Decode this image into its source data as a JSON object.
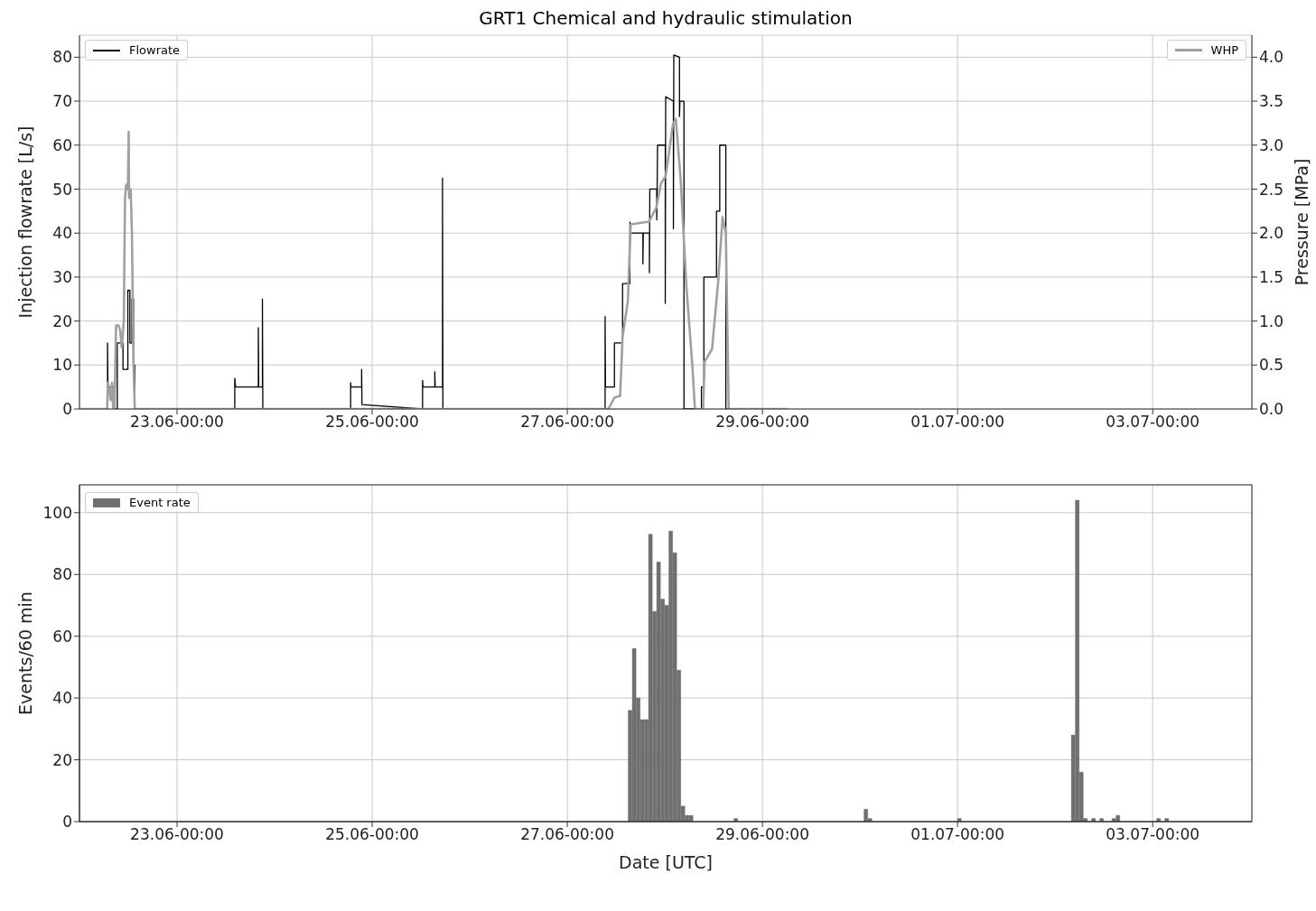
{
  "chart_data": [
    {
      "type": "line",
      "title": "GRT1 Chemical and hydraulic stimulation",
      "ylabel": "Injection flowrate [L/s]",
      "y2label": "Pressure [MPa]",
      "xlim": [
        "--06-22T00:00",
        "--07-04T00:24"
      ],
      "xticks": [
        {
          "value": "--06-23T00:00",
          "label": "23.06-00:00"
        },
        {
          "value": "--06-25T00:00",
          "label": "25.06-00:00"
        },
        {
          "value": "--06-27T00:00",
          "label": "27.06-00:00"
        },
        {
          "value": "--06-29T00:00",
          "label": "29.06-00:00"
        },
        {
          "value": "--07-01T00:00",
          "label": "01.07-00:00"
        },
        {
          "value": "--07-03T00:00",
          "label": "03.07-00:00"
        }
      ],
      "ylim": [
        0,
        85
      ],
      "yticks": [
        0,
        10,
        20,
        30,
        40,
        50,
        60,
        70,
        80
      ],
      "y2lim": [
        0,
        4.25
      ],
      "y2ticks": [
        {
          "value": 0,
          "label": "0.0"
        },
        {
          "value": 0.5,
          "label": "0.5"
        },
        {
          "value": 1,
          "label": "1.0"
        },
        {
          "value": 1.5,
          "label": "1.5"
        },
        {
          "value": 2,
          "label": "2.0"
        },
        {
          "value": 2.5,
          "label": "2.5"
        },
        {
          "value": 3,
          "label": "3.0"
        },
        {
          "value": 3.5,
          "label": "3.5"
        },
        {
          "value": 4,
          "label": "4.0"
        }
      ],
      "grid": true,
      "legend": "top left",
      "series": [
        {
          "name": "Flowrate",
          "type": "line",
          "color": "#000000",
          "x": [
            "--06-22T00:00",
            "--06-22T06:54",
            "--06-22T06:54",
            "--06-22T07:00",
            "--06-22T08:30",
            "--06-22T08:30",
            "--06-22T09:18",
            "--06-22T09:18",
            "--06-22T10:42",
            "--06-22T10:42",
            "--06-22T11:54",
            "--06-22T11:54",
            "--06-22T12:24",
            "--06-22T12:24",
            "--06-22T12:54",
            "--06-22T12:54",
            "--06-22T13:18",
            "--06-22T13:18",
            "--06-22T13:36",
            "--06-22T13:36",
            "--06-23T14:12",
            "--06-23T14:12",
            "--06-23T14:24",
            "--06-23T20:00",
            "--06-23T20:00",
            "--06-23T20:06",
            "--06-23T21:00",
            "--06-23T21:00",
            "--06-23T21:06",
            "--06-24T18:42",
            "--06-24T18:42",
            "--06-24T18:48",
            "--06-24T21:24",
            "--06-24T21:24",
            "--06-24T21:30",
            "--06-25T12:24",
            "--06-25T12:24",
            "--06-25T12:30",
            "--06-25T15:24",
            "--06-25T15:24",
            "--06-25T15:30",
            "--06-25T17:18",
            "--06-25T17:18",
            "--06-25T17:24",
            "--06-27T09:18",
            "--06-27T09:18",
            "--06-27T09:24",
            "--06-27T11:36",
            "--06-27T11:36",
            "--06-27T13:36",
            "--06-27T13:36",
            "--06-27T15:24",
            "--06-27T15:24",
            "--06-27T15:36",
            "--06-27T18:36",
            "--06-27T18:36",
            "--06-27T18:42",
            "--06-27T20:12",
            "--06-27T20:12",
            "--06-27T20:18",
            "--06-27T22:00",
            "--06-27T22:00",
            "--06-27T22:06",
            "--06-27T22:12",
            "--06-28T00:06",
            "--06-28T00:06",
            "--06-28T00:12",
            "--06-28T02:06",
            "--06-28T02:06",
            "--06-28T02:12",
            "--06-28T03:36",
            "--06-28T03:36",
            "--06-28T03:42",
            "--06-28T04:42",
            "--06-28T04:42",
            "--06-28T09:00",
            "--06-28T09:00",
            "--06-28T09:36",
            "--06-28T09:36",
            "--06-28T12:42",
            "--06-28T12:42",
            "--06-28T13:30",
            "--06-28T13:30",
            "--06-28T15:00",
            "--06-28T15:00",
            "--06-29T06:00"
          ],
          "values": [
            0,
            0,
            15,
            5,
            5,
            0,
            0,
            15,
            15,
            9,
            9,
            27,
            27,
            15,
            15,
            25,
            25,
            10,
            10,
            0,
            0,
            7,
            5,
            5,
            18.5,
            5,
            5,
            25,
            0,
            0,
            6,
            5,
            5,
            9,
            1,
            0,
            6.5,
            5,
            5,
            8.5,
            5,
            5,
            52.5,
            0,
            0,
            21,
            5,
            5,
            15,
            15,
            28.5,
            28.5,
            42.5,
            40,
            40,
            33,
            40,
            40,
            31,
            50,
            50,
            43,
            50,
            60,
            60,
            24,
            71,
            70,
            41,
            80.5,
            80,
            66.5,
            70,
            70,
            0,
            0,
            5,
            5,
            30,
            30,
            45,
            45,
            60,
            60,
            0,
            0
          ]
        },
        {
          "name": "WHP",
          "type": "line",
          "axis": "y2",
          "color": "#a0a0a0",
          "x": [
            "--06-22T00:00",
            "--06-22T06:48",
            "--06-22T07:00",
            "--06-22T07:24",
            "--06-22T07:42",
            "--06-22T08:00",
            "--06-22T08:18",
            "--06-22T08:36",
            "--06-22T09:00",
            "--06-22T09:36",
            "--06-22T10:00",
            "--06-22T10:24",
            "--06-22T10:54",
            "--06-22T11:12",
            "--06-22T11:30",
            "--06-22T11:54",
            "--06-22T12:06",
            "--06-22T12:12",
            "--06-22T12:36",
            "--06-22T12:54",
            "--06-22T13:18",
            "--06-22T13:36",
            "--06-27T10:06",
            "--06-27T11:36",
            "--06-27T13:00",
            "--06-27T13:36",
            "--06-27T14:54",
            "--06-27T15:36",
            "--06-27T20:06",
            "--06-27T21:54",
            "--06-27T23:00",
            "--06-28T00:12",
            "--06-28T02:00",
            "--06-28T02:42",
            "--06-28T03:54",
            "--06-28T05:18",
            "--06-28T06:48",
            "--06-28T07:24",
            "--06-28T09:24",
            "--06-28T09:48",
            "--06-28T11:36",
            "--06-28T13:06",
            "--06-28T14:12",
            "--06-28T15:00",
            "--06-28T15:42",
            "--06-29T06:00"
          ],
          "values": [
            0,
            0,
            0.3,
            0.2,
            0.1,
            0.3,
            0,
            0,
            0.95,
            0.95,
            0.9,
            0.7,
            1.0,
            2.4,
            2.55,
            2.5,
            3.15,
            2.4,
            2.5,
            2.0,
            0.5,
            0,
            0,
            0.13,
            0.15,
            0.82,
            1.23,
            2.1,
            2.13,
            2.29,
            2.56,
            2.65,
            3.24,
            3.3,
            2.6,
            1.39,
            0.47,
            0,
            0,
            0.54,
            0.68,
            1.44,
            2.18,
            2.0,
            0,
            0
          ]
        }
      ]
    },
    {
      "type": "histogram",
      "xlabel": "Date [UTC]",
      "ylabel": "Events/60 min",
      "xlim": [
        "--06-22T00:00",
        "--07-04T00:24"
      ],
      "xticks": [
        {
          "value": "--06-23T00:00",
          "label": "23.06-00:00"
        },
        {
          "value": "--06-25T00:00",
          "label": "25.06-00:00"
        },
        {
          "value": "--06-27T00:00",
          "label": "27.06-00:00"
        },
        {
          "value": "--06-29T00:00",
          "label": "29.06-00:00"
        },
        {
          "value": "--07-01T00:00",
          "label": "01.07-00:00"
        },
        {
          "value": "--07-03T00:00",
          "label": "03.07-00:00"
        }
      ],
      "ylim": [
        0,
        109
      ],
      "yticks": [
        0,
        20,
        40,
        60,
        80,
        100
      ],
      "grid": true,
      "legend": "top left",
      "bins": [
        "--06-27T15:00",
        "--06-27T16:00",
        "--06-27T17:00",
        "--06-27T18:00",
        "--06-27T19:00",
        "--06-27T20:00",
        "--06-27T21:00",
        "--06-27T22:00",
        "--06-27T23:00",
        "--06-28T00:00",
        "--06-28T01:00",
        "--06-28T02:00",
        "--06-28T03:00",
        "--06-28T04:00",
        "--06-28T05:00",
        "--06-28T06:00",
        "--06-28T07:00",
        "--06-28T08:00",
        "--06-28T09:00",
        "--06-28T10:00",
        "--06-28T11:00",
        "--06-28T12:00",
        "--06-28T13:00",
        "--06-28T14:00",
        "--06-28T15:00",
        "--06-28T16:00",
        "--06-28T17:00",
        "--06-28T18:00",
        "--06-28T19:00",
        "--06-28T20:00",
        "--06-28T21:00",
        "--06-28T22:00",
        "--06-28T23:00",
        "--06-29T00:00",
        "--06-29T01:00",
        "--06-29T02:00",
        "--06-29T03:00",
        "--06-29T04:00",
        "--06-29T05:00",
        "--06-29T06:00",
        "--06-29T07:00",
        "--06-29T08:00",
        "--06-29T09:00",
        "--06-29T10:00",
        "--06-29T11:00",
        "--06-29T12:00",
        "--06-29T13:00",
        "--06-29T14:00",
        "--06-29T15:00",
        "--06-29T16:00",
        "--06-29T17:00",
        "--06-29T18:00",
        "--06-29T19:00",
        "--06-29T20:00",
        "--06-29T21:00",
        "--06-29T22:00",
        "--06-29T23:00",
        "--06-30T00:00",
        "--06-30T01:00",
        "--06-30T02:00",
        "--06-30T03:00",
        "--06-30T04:00",
        "--06-30T05:00",
        "--06-30T06:00",
        "--06-30T07:00",
        "--06-30T08:00",
        "--06-30T09:00",
        "--06-30T10:00",
        "--06-30T11:00",
        "--06-30T12:00",
        "--06-30T13:00",
        "--06-30T14:00",
        "--06-30T15:00",
        "--06-30T16:00",
        "--06-30T17:00",
        "--06-30T18:00",
        "--06-30T19:00",
        "--06-30T20:00",
        "--06-30T21:00",
        "--06-30T22:00",
        "--06-30T23:00",
        "--07-01T00:00",
        "--07-01T01:00",
        "--07-01T02:00",
        "--07-01T03:00",
        "--07-01T04:00",
        "--07-01T05:00",
        "--07-01T06:00",
        "--07-01T07:00",
        "--07-01T08:00",
        "--07-01T09:00",
        "--07-01T10:00",
        "--07-01T11:00",
        "--07-01T12:00",
        "--07-01T13:00",
        "--07-01T14:00",
        "--07-01T15:00",
        "--07-01T16:00",
        "--07-01T17:00",
        "--07-01T18:00",
        "--07-01T19:00",
        "--07-01T20:00",
        "--07-01T21:00",
        "--07-01T22:00",
        "--07-01T23:00",
        "--07-02T00:00",
        "--07-02T01:00",
        "--07-02T02:00",
        "--07-02T03:00",
        "--07-02T04:00",
        "--07-02T05:00",
        "--07-02T06:00",
        "--07-02T07:00",
        "--07-02T08:00",
        "--07-02T09:00",
        "--07-02T10:00",
        "--07-02T11:00",
        "--07-02T12:00",
        "--07-02T13:00",
        "--07-02T14:00",
        "--07-02T15:00",
        "--07-02T16:00",
        "--07-02T17:00",
        "--07-02T18:00",
        "--07-02T19:00",
        "--07-02T20:00",
        "--07-02T21:00",
        "--07-02T22:00",
        "--07-02T23:00",
        "--07-03T00:00",
        "--07-03T01:00",
        "--07-03T02:00",
        "--07-03T03:00",
        "--07-03T04:00"
      ],
      "series": [
        {
          "name": "Event rate",
          "color": "#707070",
          "values": [
            36,
            56,
            40,
            33,
            33,
            93,
            68,
            84,
            72,
            70,
            94,
            87,
            49,
            5,
            2,
            2,
            0,
            0,
            0,
            0,
            0,
            0,
            0,
            0,
            0,
            0,
            1,
            0,
            0,
            0,
            0,
            0,
            0,
            0,
            0,
            0,
            0,
            0,
            0,
            0,
            0,
            0,
            0,
            0,
            0,
            0,
            0,
            0,
            0,
            0,
            0,
            0,
            0,
            0,
            0,
            0,
            0,
            0,
            4,
            1,
            0,
            0,
            0,
            0,
            0,
            0,
            0,
            0,
            0,
            0,
            0,
            0,
            0,
            0,
            0,
            0,
            0,
            0,
            0,
            0,
            0,
            1,
            0,
            0,
            0,
            0,
            0,
            0,
            0,
            0,
            0,
            0,
            0,
            0,
            0,
            0,
            0,
            0,
            0,
            0,
            0,
            0,
            0,
            0,
            0,
            0,
            0,
            0,
            0,
            28,
            104,
            16,
            1,
            0,
            1,
            0,
            1,
            0,
            0,
            1,
            2,
            0,
            0,
            0,
            0,
            0,
            0,
            0,
            0,
            0,
            1,
            0,
            1
          ]
        }
      ]
    }
  ]
}
